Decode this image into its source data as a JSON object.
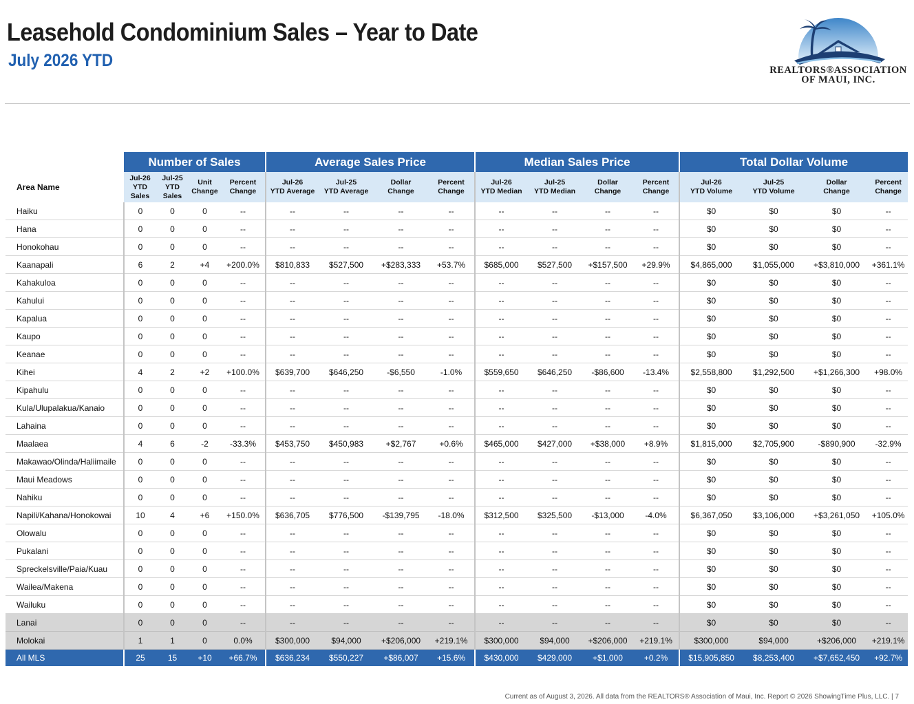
{
  "header": {
    "title": "Leasehold Condominium Sales – Year to Date",
    "subtitle": "July 2026 YTD"
  },
  "logo": {
    "line1": "REALTORS®ASSOCIATION",
    "line2": "OF MAUI, INC.",
    "colors": {
      "navy": "#1d3f73",
      "sky": "#6fb4e6",
      "arc": "#a7cbe8"
    }
  },
  "table": {
    "area_header": "Area Name",
    "groups": [
      "Number of Sales",
      "Average Sales Price",
      "Median Sales Price",
      "Total Dollar Volume"
    ],
    "subheaders": [
      [
        "Jul-26",
        "YTD",
        "Sales"
      ],
      [
        "Jul-25",
        "YTD",
        "Sales"
      ],
      [
        "Unit",
        "Change"
      ],
      [
        "Percent",
        "Change"
      ],
      [
        "Jul-26",
        "YTD Average"
      ],
      [
        "Jul-25",
        "YTD Average"
      ],
      [
        "Dollar",
        "Change"
      ],
      [
        "Percent",
        "Change"
      ],
      [
        "Jul-26",
        "YTD Median"
      ],
      [
        "Jul-25",
        "YTD Median"
      ],
      [
        "Dollar",
        "Change"
      ],
      [
        "Percent",
        "Change"
      ],
      [
        "Jul-26",
        "YTD Volume"
      ],
      [
        "Jul-25",
        "YTD Volume"
      ],
      [
        "Dollar",
        "Change"
      ],
      [
        "Percent",
        "Change"
      ]
    ],
    "rows": [
      {
        "area": "Haiku",
        "values": [
          "0",
          "0",
          "0",
          "--",
          "--",
          "--",
          "--",
          "--",
          "--",
          "--",
          "--",
          "--",
          "$0",
          "$0",
          "$0",
          "--"
        ]
      },
      {
        "area": "Hana",
        "values": [
          "0",
          "0",
          "0",
          "--",
          "--",
          "--",
          "--",
          "--",
          "--",
          "--",
          "--",
          "--",
          "$0",
          "$0",
          "$0",
          "--"
        ]
      },
      {
        "area": "Honokohau",
        "values": [
          "0",
          "0",
          "0",
          "--",
          "--",
          "--",
          "--",
          "--",
          "--",
          "--",
          "--",
          "--",
          "$0",
          "$0",
          "$0",
          "--"
        ]
      },
      {
        "area": "Kaanapali",
        "values": [
          "6",
          "2",
          "+4",
          "+200.0%",
          "$810,833",
          "$527,500",
          "+$283,333",
          "+53.7%",
          "$685,000",
          "$527,500",
          "+$157,500",
          "+29.9%",
          "$4,865,000",
          "$1,055,000",
          "+$3,810,000",
          "+361.1%"
        ]
      },
      {
        "area": "Kahakuloa",
        "values": [
          "0",
          "0",
          "0",
          "--",
          "--",
          "--",
          "--",
          "--",
          "--",
          "--",
          "--",
          "--",
          "$0",
          "$0",
          "$0",
          "--"
        ]
      },
      {
        "area": "Kahului",
        "values": [
          "0",
          "0",
          "0",
          "--",
          "--",
          "--",
          "--",
          "--",
          "--",
          "--",
          "--",
          "--",
          "$0",
          "$0",
          "$0",
          "--"
        ]
      },
      {
        "area": "Kapalua",
        "values": [
          "0",
          "0",
          "0",
          "--",
          "--",
          "--",
          "--",
          "--",
          "--",
          "--",
          "--",
          "--",
          "$0",
          "$0",
          "$0",
          "--"
        ]
      },
      {
        "area": "Kaupo",
        "values": [
          "0",
          "0",
          "0",
          "--",
          "--",
          "--",
          "--",
          "--",
          "--",
          "--",
          "--",
          "--",
          "$0",
          "$0",
          "$0",
          "--"
        ]
      },
      {
        "area": "Keanae",
        "values": [
          "0",
          "0",
          "0",
          "--",
          "--",
          "--",
          "--",
          "--",
          "--",
          "--",
          "--",
          "--",
          "$0",
          "$0",
          "$0",
          "--"
        ]
      },
      {
        "area": "Kihei",
        "values": [
          "4",
          "2",
          "+2",
          "+100.0%",
          "$639,700",
          "$646,250",
          "-$6,550",
          "-1.0%",
          "$559,650",
          "$646,250",
          "-$86,600",
          "-13.4%",
          "$2,558,800",
          "$1,292,500",
          "+$1,266,300",
          "+98.0%"
        ]
      },
      {
        "area": "Kipahulu",
        "values": [
          "0",
          "0",
          "0",
          "--",
          "--",
          "--",
          "--",
          "--",
          "--",
          "--",
          "--",
          "--",
          "$0",
          "$0",
          "$0",
          "--"
        ]
      },
      {
        "area": "Kula/Ulupalakua/Kanaio",
        "values": [
          "0",
          "0",
          "0",
          "--",
          "--",
          "--",
          "--",
          "--",
          "--",
          "--",
          "--",
          "--",
          "$0",
          "$0",
          "$0",
          "--"
        ]
      },
      {
        "area": "Lahaina",
        "values": [
          "0",
          "0",
          "0",
          "--",
          "--",
          "--",
          "--",
          "--",
          "--",
          "--",
          "--",
          "--",
          "$0",
          "$0",
          "$0",
          "--"
        ]
      },
      {
        "area": "Maalaea",
        "values": [
          "4",
          "6",
          "-2",
          "-33.3%",
          "$453,750",
          "$450,983",
          "+$2,767",
          "+0.6%",
          "$465,000",
          "$427,000",
          "+$38,000",
          "+8.9%",
          "$1,815,000",
          "$2,705,900",
          "-$890,900",
          "-32.9%"
        ]
      },
      {
        "area": "Makawao/Olinda/Haliimaile",
        "values": [
          "0",
          "0",
          "0",
          "--",
          "--",
          "--",
          "--",
          "--",
          "--",
          "--",
          "--",
          "--",
          "$0",
          "$0",
          "$0",
          "--"
        ]
      },
      {
        "area": "Maui Meadows",
        "values": [
          "0",
          "0",
          "0",
          "--",
          "--",
          "--",
          "--",
          "--",
          "--",
          "--",
          "--",
          "--",
          "$0",
          "$0",
          "$0",
          "--"
        ]
      },
      {
        "area": "Nahiku",
        "values": [
          "0",
          "0",
          "0",
          "--",
          "--",
          "--",
          "--",
          "--",
          "--",
          "--",
          "--",
          "--",
          "$0",
          "$0",
          "$0",
          "--"
        ]
      },
      {
        "area": "Napili/Kahana/Honokowai",
        "values": [
          "10",
          "4",
          "+6",
          "+150.0%",
          "$636,705",
          "$776,500",
          "-$139,795",
          "-18.0%",
          "$312,500",
          "$325,500",
          "-$13,000",
          "-4.0%",
          "$6,367,050",
          "$3,106,000",
          "+$3,261,050",
          "+105.0%"
        ]
      },
      {
        "area": "Olowalu",
        "values": [
          "0",
          "0",
          "0",
          "--",
          "--",
          "--",
          "--",
          "--",
          "--",
          "--",
          "--",
          "--",
          "$0",
          "$0",
          "$0",
          "--"
        ]
      },
      {
        "area": "Pukalani",
        "values": [
          "0",
          "0",
          "0",
          "--",
          "--",
          "--",
          "--",
          "--",
          "--",
          "--",
          "--",
          "--",
          "$0",
          "$0",
          "$0",
          "--"
        ]
      },
      {
        "area": "Spreckelsville/Paia/Kuau",
        "values": [
          "0",
          "0",
          "0",
          "--",
          "--",
          "--",
          "--",
          "--",
          "--",
          "--",
          "--",
          "--",
          "$0",
          "$0",
          "$0",
          "--"
        ]
      },
      {
        "area": "Wailea/Makena",
        "values": [
          "0",
          "0",
          "0",
          "--",
          "--",
          "--",
          "--",
          "--",
          "--",
          "--",
          "--",
          "--",
          "$0",
          "$0",
          "$0",
          "--"
        ]
      },
      {
        "area": "Wailuku",
        "values": [
          "0",
          "0",
          "0",
          "--",
          "--",
          "--",
          "--",
          "--",
          "--",
          "--",
          "--",
          "--",
          "$0",
          "$0",
          "$0",
          "--"
        ]
      },
      {
        "area": "Lanai",
        "style": "grey",
        "values": [
          "0",
          "0",
          "0",
          "--",
          "--",
          "--",
          "--",
          "--",
          "--",
          "--",
          "--",
          "--",
          "$0",
          "$0",
          "$0",
          "--"
        ]
      },
      {
        "area": "Molokai",
        "style": "grey",
        "values": [
          "1",
          "1",
          "0",
          "0.0%",
          "$300,000",
          "$94,000",
          "+$206,000",
          "+219.1%",
          "$300,000",
          "$94,000",
          "+$206,000",
          "+219.1%",
          "$300,000",
          "$94,000",
          "+$206,000",
          "+219.1%"
        ]
      },
      {
        "area": "All MLS",
        "style": "total",
        "values": [
          "25",
          "15",
          "+10",
          "+66.7%",
          "$636,234",
          "$550,227",
          "+$86,007",
          "+15.6%",
          "$430,000",
          "$429,000",
          "+$1,000",
          "+0.2%",
          "$15,905,850",
          "$8,253,400",
          "+$7,652,450",
          "+92.7%"
        ]
      }
    ]
  },
  "footer": "Current as of August 3, 2026. All data from the REALTORS® Association of Maui, Inc. Report © 2026 ShowingTime Plus, LLC.  |  7"
}
